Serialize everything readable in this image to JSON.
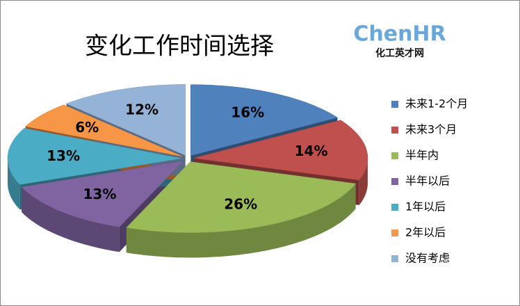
{
  "chart_data": {
    "type": "pie3d",
    "title": "变化工作时间选择",
    "annotations": [
      "ChenHR",
      "化工英才网"
    ],
    "categories": [
      "未来1-2个月",
      "未来3个月",
      "半年内",
      "半年以后",
      "1年以后",
      "2年以后",
      "没有考虑"
    ],
    "values": [
      16,
      14,
      26,
      13,
      13,
      6,
      12
    ],
    "value_labels": [
      "16%",
      "14%",
      "26%",
      "13%",
      "13%",
      "6%",
      "12%"
    ],
    "colors": [
      "#4f81bd",
      "#c0504d",
      "#9bbb59",
      "#8064a2",
      "#4bacc6",
      "#f79646",
      "#95b3d7"
    ],
    "legend": "right"
  }
}
